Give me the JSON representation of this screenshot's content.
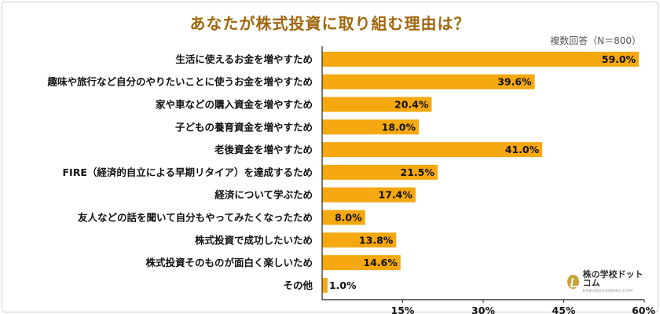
{
  "chart_data": {
    "type": "bar",
    "orientation": "horizontal",
    "title": "あなたが株式投資に取り組む理由は？",
    "note": "複数回答（N＝800）",
    "categories": [
      "生活に使えるお金を増やすため",
      "趣味や旅行など自分のやりたいことに使うお金を増やすため",
      "家や車などの購入資金を増やすため",
      "子どもの養育資金を増やすため",
      "老後資金を増やすため",
      "FIRE（経済的自立による早期リタイア）を達成するため",
      "経済について学ぶため",
      "友人などの話を聞いて自分もやってみたくなったため",
      "株式投資で成功したいため",
      "株式投資そのものが面白く楽しいため",
      "その他"
    ],
    "values": [
      59.0,
      39.6,
      20.4,
      18.0,
      41.0,
      21.5,
      17.4,
      8.0,
      13.8,
      14.6,
      1.0
    ],
    "value_labels": [
      "59.0%",
      "39.6%",
      "20.4%",
      "18.0%",
      "41.0%",
      "21.5%",
      "17.4%",
      "8.0%",
      "13.8%",
      "14.6%",
      "1.0%"
    ],
    "xlim": [
      0,
      60
    ],
    "xticks": [
      15,
      30,
      45,
      60
    ],
    "xtick_labels": [
      "15%",
      "30%",
      "45%",
      "60%"
    ],
    "bar_color": "#f5a80f",
    "grid": false
  },
  "brand": {
    "logo_text": "株の学校ドットコム",
    "logo_sub": "KABUNOGAKKOU.COM",
    "icon": "logo-mark-icon"
  }
}
